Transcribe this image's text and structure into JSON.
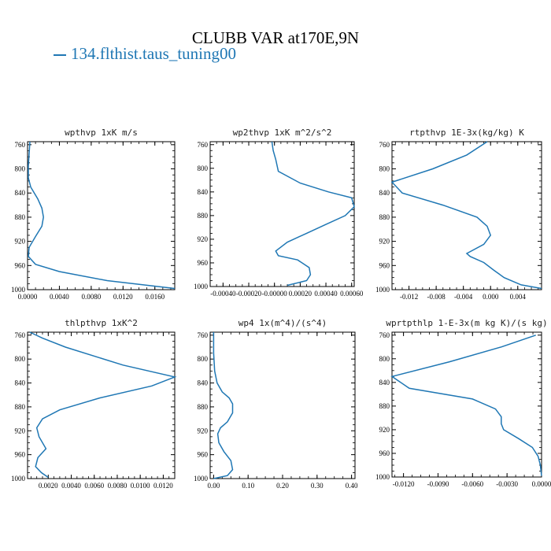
{
  "page": {
    "title": "CLUBB VAR at170E,9N",
    "legend_label": "134.flthist.taus_tuning00",
    "line_color": "#1f77b4"
  },
  "chart_data": [
    {
      "type": "line",
      "title": "wpthvp  1xK m/s",
      "xlim": [
        0.0,
        0.0185
      ],
      "ylim": [
        1000,
        755
      ],
      "xticks": [
        0.0,
        0.004,
        0.008,
        0.012,
        0.016
      ],
      "xtick_labels": [
        "0.0000",
        "0.0040",
        "0.0080",
        "0.0120",
        "0.0160"
      ],
      "yticks": [
        760,
        800,
        840,
        880,
        920,
        960,
        1000
      ],
      "series": [
        {
          "x": [
            0.0003,
            0.0002,
            0.0001,
            0.0001,
            0.0004,
            0.0013,
            0.0018,
            0.002,
            0.0018,
            0.001,
            0.0002,
            0.0001,
            0.001,
            0.004,
            0.01,
            0.0185
          ],
          "y": [
            755,
            775,
            795,
            815,
            830,
            850,
            865,
            880,
            895,
            912,
            930,
            945,
            958,
            970,
            985,
            998
          ]
        }
      ]
    },
    {
      "type": "line",
      "title": "wp2thvp  1xK m^2/s^2",
      "xlim": [
        -0.0005,
        0.00062
      ],
      "ylim": [
        1000,
        755
      ],
      "xticks": [
        -0.0004,
        -0.0002,
        0.0,
        0.0002,
        0.0004,
        0.0006
      ],
      "xtick_labels": [
        "-0.00040",
        "-0.00020",
        "-0.00000",
        "0.00020",
        "0.00040",
        "0.00060"
      ],
      "yticks": [
        760,
        800,
        840,
        880,
        920,
        960,
        1000
      ],
      "series": [
        {
          "x": [
            -2e-05,
            -1e-05,
            1e-05,
            3e-05,
            0.0002,
            0.00042,
            0.0006,
            0.00062,
            0.00055,
            0.0004,
            0.00025,
            0.0001,
            1e-05,
            3e-05,
            0.00018,
            0.00027,
            0.00028,
            0.00025,
            0.0001
          ],
          "y": [
            755,
            770,
            785,
            805,
            825,
            840,
            850,
            865,
            880,
            895,
            910,
            925,
            940,
            948,
            955,
            968,
            980,
            990,
            998
          ]
        }
      ]
    },
    {
      "type": "line",
      "title": "rtpthvp  1E-3x(kg/kg) K",
      "xlim": [
        -0.0145,
        0.0075
      ],
      "ylim": [
        1000,
        755
      ],
      "xticks": [
        -0.012,
        -0.008,
        -0.004,
        0.0,
        0.004
      ],
      "xtick_labels": [
        "-0.012",
        "-0.008",
        "-0.004",
        "0.000",
        "0.004"
      ],
      "yticks": [
        760,
        800,
        840,
        880,
        920,
        960,
        1000
      ],
      "series": [
        {
          "x": [
            -0.0005,
            -0.0035,
            -0.0085,
            -0.0145,
            -0.013,
            -0.007,
            -0.002,
            -0.0005,
            0.0,
            -0.001,
            -0.0035,
            -0.003,
            -0.001,
            0.0005,
            0.002,
            0.0045,
            0.0075
          ],
          "y": [
            755,
            777,
            800,
            822,
            840,
            860,
            880,
            895,
            910,
            925,
            940,
            945,
            955,
            968,
            980,
            992,
            998
          ]
        }
      ]
    },
    {
      "type": "line",
      "title": "thlpthvp  1xK^2",
      "xlim": [
        0.0002,
        0.013
      ],
      "ylim": [
        1000,
        755
      ],
      "xticks": [
        0.002,
        0.004,
        0.006,
        0.008,
        0.01,
        0.012
      ],
      "xtick_labels": [
        "0.0020",
        "0.0040",
        "0.0060",
        "0.0080",
        "0.0100",
        "0.0120"
      ],
      "yticks": [
        760,
        800,
        840,
        880,
        920,
        960,
        1000
      ],
      "series": [
        {
          "x": [
            0.0004,
            0.0015,
            0.0035,
            0.0085,
            0.013,
            0.011,
            0.0065,
            0.003,
            0.0015,
            0.001,
            0.0012,
            0.0018,
            0.0011,
            0.0009,
            0.0014,
            0.002
          ],
          "y": [
            755,
            765,
            780,
            810,
            830,
            845,
            865,
            885,
            900,
            915,
            930,
            950,
            965,
            980,
            990,
            998
          ]
        }
      ]
    },
    {
      "type": "line",
      "title": "wp4  1x(m^4)/(s^4)",
      "xlim": [
        -0.01,
        0.41
      ],
      "ylim": [
        1000,
        755
      ],
      "xticks": [
        0.0,
        0.1,
        0.2,
        0.3,
        0.4
      ],
      "xtick_labels": [
        "0.00",
        "0.10",
        "0.20",
        "0.30",
        "0.40"
      ],
      "yticks": [
        760,
        800,
        840,
        880,
        920,
        960,
        1000
      ],
      "series": [
        {
          "x": [
            0.0,
            0.0,
            0.003,
            0.01,
            0.025,
            0.045,
            0.055,
            0.055,
            0.04,
            0.02,
            0.012,
            0.015,
            0.03,
            0.05,
            0.055,
            0.04,
            0.0
          ],
          "y": [
            755,
            790,
            820,
            840,
            855,
            865,
            875,
            890,
            905,
            915,
            925,
            940,
            955,
            970,
            985,
            995,
            1000
          ]
        }
      ]
    },
    {
      "type": "line",
      "title": "wprtpthlp  1-E-3x(m kg K)/(s kg)",
      "xlim": [
        -0.013,
        0.0
      ],
      "ylim": [
        1000,
        755
      ],
      "xticks": [
        -0.012,
        -0.009,
        -0.006,
        -0.003,
        0.0
      ],
      "xtick_labels": [
        "-0.0120",
        "-0.0090",
        "-0.0060",
        "-0.0030",
        "0.0000"
      ],
      "yticks": [
        760,
        800,
        840,
        880,
        920,
        960,
        1000
      ],
      "series": [
        {
          "x": [
            -0.0005,
            -0.0035,
            -0.008,
            -0.013,
            -0.0115,
            -0.006,
            -0.004,
            -0.0035,
            -0.0035,
            -0.0033,
            -0.002,
            -0.0008,
            -0.0003,
            -0.0001,
            0.0
          ],
          "y": [
            760,
            780,
            805,
            830,
            850,
            868,
            885,
            898,
            910,
            920,
            935,
            950,
            965,
            980,
            998
          ]
        }
      ]
    }
  ]
}
